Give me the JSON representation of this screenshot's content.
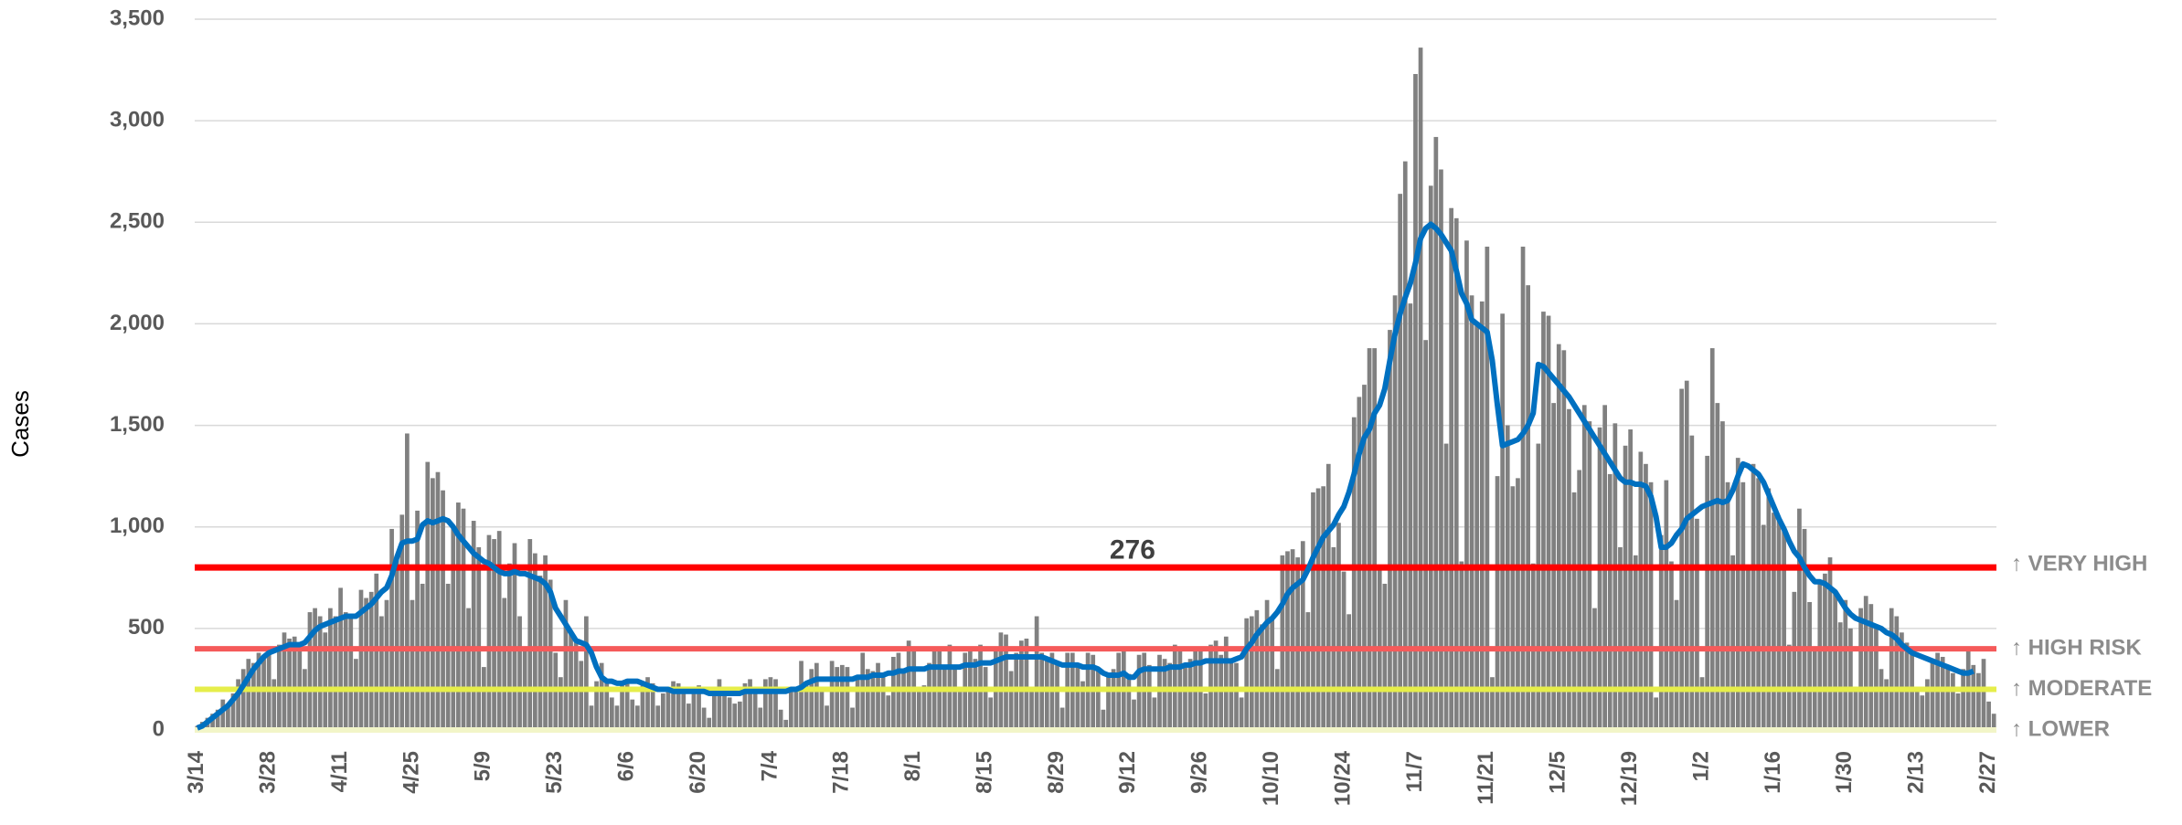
{
  "chart_data": {
    "type": "bar",
    "y_label": "Cases",
    "ylim": [
      0,
      3500
    ],
    "yticks": [
      0,
      500,
      {
        "value": 1000,
        "label": "1,000"
      },
      {
        "value": 1500,
        "label": "1,500"
      },
      {
        "value": 2000,
        "label": "2,000"
      },
      {
        "value": 2500,
        "label": "2,500"
      },
      {
        "value": 3000,
        "label": "3,000"
      },
      {
        "value": 3500,
        "label": "3,500"
      }
    ],
    "grid": true,
    "annotation": "276",
    "categories": [
      "3/14",
      null,
      null,
      null,
      null,
      null,
      null,
      null,
      null,
      null,
      null,
      null,
      null,
      null,
      "3/28",
      null,
      null,
      null,
      null,
      null,
      null,
      null,
      null,
      null,
      null,
      null,
      null,
      null,
      "4/11",
      null,
      null,
      null,
      null,
      null,
      null,
      null,
      null,
      null,
      null,
      null,
      null,
      null,
      "4/25",
      null,
      null,
      null,
      null,
      null,
      null,
      null,
      null,
      null,
      null,
      null,
      null,
      null,
      "5/9",
      null,
      null,
      null,
      null,
      null,
      null,
      null,
      null,
      null,
      null,
      null,
      null,
      null,
      "5/23",
      null,
      null,
      null,
      null,
      null,
      null,
      null,
      null,
      null,
      null,
      null,
      null,
      null,
      "6/6",
      null,
      null,
      null,
      null,
      null,
      null,
      null,
      null,
      null,
      null,
      null,
      null,
      null,
      "6/20",
      null,
      null,
      null,
      null,
      null,
      null,
      null,
      null,
      null,
      null,
      null,
      null,
      null,
      "7/4",
      null,
      null,
      null,
      null,
      null,
      null,
      null,
      null,
      null,
      null,
      null,
      null,
      null,
      "7/18",
      null,
      null,
      null,
      null,
      null,
      null,
      null,
      null,
      null,
      null,
      null,
      null,
      null,
      "8/1",
      null,
      null,
      null,
      null,
      null,
      null,
      null,
      null,
      null,
      null,
      null,
      null,
      null,
      "8/15",
      null,
      null,
      null,
      null,
      null,
      null,
      null,
      null,
      null,
      null,
      null,
      null,
      null,
      "8/29",
      null,
      null,
      null,
      null,
      null,
      null,
      null,
      null,
      null,
      null,
      null,
      null,
      null,
      "9/12",
      null,
      null,
      null,
      null,
      null,
      null,
      null,
      null,
      null,
      null,
      null,
      null,
      null,
      "9/26",
      null,
      null,
      null,
      null,
      null,
      null,
      null,
      null,
      null,
      null,
      null,
      null,
      null,
      "10/10",
      null,
      null,
      null,
      null,
      null,
      null,
      null,
      null,
      null,
      null,
      null,
      null,
      null,
      "10/24",
      null,
      null,
      null,
      null,
      null,
      null,
      null,
      null,
      null,
      null,
      null,
      null,
      null,
      "11/7",
      null,
      null,
      null,
      null,
      null,
      null,
      null,
      null,
      null,
      null,
      null,
      null,
      null,
      "11/21",
      null,
      null,
      null,
      null,
      null,
      null,
      null,
      null,
      null,
      null,
      null,
      null,
      null,
      "12/5",
      null,
      null,
      null,
      null,
      null,
      null,
      null,
      null,
      null,
      null,
      null,
      null,
      null,
      "12/19",
      null,
      null,
      null,
      null,
      null,
      null,
      null,
      null,
      null,
      null,
      null,
      null,
      null,
      "1/2",
      null,
      null,
      null,
      null,
      null,
      null,
      null,
      null,
      null,
      null,
      null,
      null,
      null,
      "1/16",
      null,
      null,
      null,
      null,
      null,
      null,
      null,
      null,
      null,
      null,
      null,
      null,
      null,
      "1/30",
      null,
      null,
      null,
      null,
      null,
      null,
      null,
      null,
      null,
      null,
      null,
      null,
      null,
      "2/13",
      null,
      null,
      null,
      null,
      null,
      null,
      null,
      null,
      null,
      null,
      null,
      null,
      null,
      "2/27",
      null
    ],
    "series": [
      {
        "color": "#808080",
        "values": [
          20,
          40,
          60,
          80,
          100,
          150,
          130,
          180,
          250,
          300,
          350,
          330,
          380,
          360,
          380,
          250,
          420,
          480,
          450,
          460,
          420,
          300,
          580,
          600,
          560,
          480,
          600,
          560,
          700,
          580,
          570,
          350,
          690,
          650,
          680,
          770,
          560,
          640,
          990,
          860,
          1060,
          1460,
          640,
          1080,
          720,
          1320,
          1240,
          1270,
          1180,
          720,
          1000,
          1120,
          1090,
          600,
          1030,
          900,
          310,
          960,
          940,
          980,
          650,
          820,
          920,
          560,
          390,
          940,
          870,
          760,
          860,
          740,
          380,
          260,
          640,
          490,
          430,
          340,
          560,
          120,
          240,
          330,
          240,
          160,
          120,
          230,
          250,
          150,
          120,
          220,
          260,
          230,
          120,
          180,
          210,
          240,
          230,
          190,
          130,
          200,
          220,
          110,
          60,
          210,
          250,
          180,
          160,
          130,
          140,
          230,
          250,
          200,
          110,
          250,
          260,
          250,
          100,
          50,
          190,
          200,
          340,
          220,
          300,
          330,
          200,
          120,
          340,
          310,
          320,
          310,
          110,
          250,
          380,
          300,
          290,
          330,
          260,
          170,
          360,
          380,
          300,
          440,
          400,
          210,
          220,
          330,
          410,
          390,
          310,
          420,
          300,
          200,
          380,
          410,
          350,
          420,
          310,
          160,
          400,
          480,
          470,
          290,
          380,
          440,
          450,
          200,
          560,
          380,
          340,
          380,
          340,
          110,
          380,
          380,
          330,
          240,
          380,
          370,
          290,
          100,
          280,
          300,
          380,
          400,
          276,
          150,
          370,
          380,
          320,
          160,
          370,
          350,
          330,
          420,
          400,
          320,
          350,
          390,
          400,
          180,
          420,
          440,
          370,
          460,
          340,
          330,
          160,
          550,
          560,
          590,
          520,
          640,
          560,
          300,
          860,
          880,
          890,
          850,
          930,
          580,
          1170,
          1190,
          1200,
          1310,
          900,
          1020,
          780,
          570,
          1540,
          1640,
          1700,
          1880,
          1880,
          800,
          720,
          1970,
          2140,
          2640,
          2800,
          2100,
          3230,
          3360,
          1920,
          2680,
          2920,
          2760,
          1410,
          2570,
          2520,
          830,
          2410,
          2140,
          2000,
          2110,
          2380,
          260,
          1250,
          2050,
          1500,
          1200,
          1240,
          2380,
          2190,
          820,
          1410,
          2060,
          2040,
          1610,
          1900,
          1870,
          1580,
          1170,
          1280,
          1600,
          1520,
          600,
          1490,
          1600,
          1260,
          1510,
          900,
          1400,
          1480,
          860,
          1370,
          1310,
          1220,
          160,
          960,
          1230,
          830,
          640,
          1680,
          1720,
          1450,
          1040,
          260,
          1350,
          1880,
          1610,
          1520,
          1220,
          860,
          1340,
          1220,
          790,
          1310,
          1240,
          1010,
          1190,
          1070,
          1040,
          1000,
          420,
          680,
          1090,
          990,
          630,
          400,
          720,
          770,
          850,
          680,
          530,
          640,
          500,
          190,
          600,
          660,
          620,
          520,
          300,
          250,
          600,
          560,
          480,
          430,
          380,
          200,
          170,
          250,
          350,
          380,
          360,
          320,
          280,
          180,
          300,
          400,
          320,
          280,
          350,
          140,
          80
        ]
      },
      {
        "type": "line",
        "color": "#0070c0",
        "values": [
          10,
          20,
          40,
          60,
          80,
          100,
          120,
          150,
          180,
          220,
          260,
          300,
          330,
          360,
          380,
          390,
          400,
          410,
          420,
          420,
          420,
          430,
          460,
          490,
          510,
          520,
          530,
          540,
          550,
          560,
          560,
          560,
          580,
          600,
          620,
          650,
          680,
          700,
          760,
          850,
          920,
          930,
          930,
          940,
          1010,
          1030,
          1020,
          1030,
          1040,
          1030,
          1000,
          960,
          930,
          900,
          870,
          850,
          830,
          820,
          800,
          780,
          770,
          770,
          780,
          770,
          770,
          760,
          750,
          740,
          720,
          680,
          600,
          560,
          520,
          480,
          440,
          430,
          420,
          380,
          310,
          260,
          240,
          240,
          230,
          230,
          240,
          240,
          240,
          230,
          220,
          210,
          200,
          200,
          200,
          190,
          190,
          190,
          190,
          190,
          190,
          190,
          180,
          180,
          180,
          180,
          180,
          180,
          180,
          190,
          190,
          190,
          190,
          190,
          190,
          190,
          190,
          190,
          200,
          200,
          210,
          230,
          240,
          250,
          250,
          250,
          250,
          250,
          250,
          250,
          250,
          260,
          260,
          260,
          270,
          270,
          270,
          280,
          280,
          290,
          290,
          300,
          300,
          300,
          300,
          310,
          310,
          310,
          310,
          310,
          310,
          310,
          320,
          320,
          320,
          330,
          330,
          330,
          340,
          350,
          360,
          360,
          360,
          360,
          360,
          360,
          360,
          360,
          350,
          340,
          330,
          320,
          320,
          320,
          320,
          310,
          310,
          310,
          300,
          280,
          270,
          270,
          270,
          280,
          260,
          260,
          290,
          300,
          300,
          300,
          300,
          300,
          310,
          310,
          310,
          320,
          320,
          330,
          330,
          340,
          340,
          340,
          340,
          340,
          340,
          350,
          360,
          400,
          430,
          470,
          500,
          530,
          550,
          580,
          620,
          670,
          700,
          720,
          740,
          790,
          850,
          900,
          950,
          980,
          1010,
          1060,
          1100,
          1170,
          1260,
          1360,
          1440,
          1480,
          1560,
          1600,
          1680,
          1820,
          1950,
          2050,
          2130,
          2200,
          2300,
          2420,
          2470,
          2490,
          2470,
          2440,
          2400,
          2360,
          2260,
          2150,
          2100,
          2020,
          2000,
          1980,
          1960,
          1820,
          1600,
          1400,
          1410,
          1420,
          1430,
          1460,
          1500,
          1560,
          1800,
          1790,
          1760,
          1730,
          1700,
          1670,
          1640,
          1600,
          1560,
          1520,
          1480,
          1440,
          1400,
          1360,
          1320,
          1280,
          1240,
          1220,
          1220,
          1210,
          1210,
          1200,
          1150,
          1050,
          900,
          900,
          920,
          960,
          990,
          1040,
          1060,
          1080,
          1100,
          1110,
          1120,
          1130,
          1120,
          1130,
          1180,
          1250,
          1310,
          1300,
          1280,
          1260,
          1220,
          1160,
          1100,
          1040,
          990,
          930,
          880,
          850,
          800,
          760,
          730,
          730,
          720,
          700,
          680,
          640,
          600,
          570,
          550,
          540,
          530,
          520,
          510,
          500,
          480,
          470,
          450,
          420,
          400,
          380,
          370,
          360,
          350,
          340,
          330,
          320,
          310,
          300,
          290,
          280,
          280,
          290,
          null,
          null,
          null,
          null
        ]
      }
    ],
    "thresholds": [
      {
        "value": 800,
        "label": "↑ VERY HIGH",
        "color": "#ff0000"
      },
      {
        "value": 400,
        "label": "↑ HIGH RISK",
        "color": "#f55a5a"
      },
      {
        "value": 200,
        "label": "↑ MODERATE",
        "color": "#e6ee4a"
      },
      {
        "value": 0,
        "label": "↑ LOWER",
        "color": "#f2f5c8"
      }
    ]
  }
}
